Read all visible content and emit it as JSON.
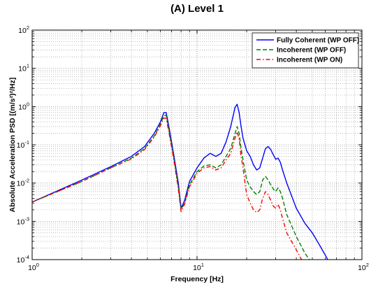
{
  "chart_data": {
    "type": "line",
    "title": "(A) Level 1",
    "xlabel": "Frequency [Hz]",
    "ylabel": "Absolute Acceleration PSD [(m/s²)²/Hz]",
    "xscale": "log",
    "yscale": "log",
    "xlim": [
      1,
      100
    ],
    "ylim": [
      0.0001,
      100
    ],
    "grid": "on (major and minor, dotted)",
    "legend_position": "top-right",
    "x_ticks": [
      {
        "base": "10",
        "exp": "0",
        "value": 1
      },
      {
        "base": "10",
        "exp": "1",
        "value": 10
      },
      {
        "base": "10",
        "exp": "2",
        "value": 100
      }
    ],
    "y_ticks": [
      {
        "base": "10",
        "exp": "2",
        "value": 100
      },
      {
        "base": "10",
        "exp": "1",
        "value": 10
      },
      {
        "base": "10",
        "exp": "0",
        "value": 1
      },
      {
        "base": "10",
        "exp": "-1",
        "value": 0.1
      },
      {
        "base": "10",
        "exp": "-2",
        "value": 0.01
      },
      {
        "base": "10",
        "exp": "-3",
        "value": 0.001
      },
      {
        "base": "10",
        "exp": "-4",
        "value": 0.0001
      }
    ],
    "series": [
      {
        "name": "Fully Coherent (WP OFF)",
        "color": "#0000ff",
        "dash": "solid",
        "x": [
          1,
          2,
          3,
          4,
          4.8,
          5.5,
          6,
          6.3,
          6.5,
          6.8,
          7.2,
          7.7,
          8,
          8.4,
          9,
          10,
          11,
          12,
          13,
          14,
          15,
          16,
          17,
          17.5,
          18,
          18.5,
          19,
          20,
          21,
          22,
          23,
          24,
          25,
          26,
          27,
          28,
          29,
          30,
          31,
          32,
          33,
          35,
          40,
          45,
          50,
          55,
          60,
          62
        ],
        "y": [
          0.0032,
          0.012,
          0.027,
          0.05,
          0.09,
          0.2,
          0.4,
          0.7,
          0.7,
          0.25,
          0.06,
          0.01,
          0.0022,
          0.0035,
          0.011,
          0.025,
          0.045,
          0.06,
          0.05,
          0.06,
          0.12,
          0.3,
          0.95,
          1.15,
          0.7,
          0.3,
          0.15,
          0.07,
          0.05,
          0.03,
          0.022,
          0.025,
          0.045,
          0.08,
          0.09,
          0.075,
          0.055,
          0.042,
          0.045,
          0.035,
          0.022,
          0.01,
          0.0022,
          0.0009,
          0.0005,
          0.00025,
          0.00013,
          0.0001
        ]
      },
      {
        "name": "Incoherent (WP OFF)",
        "color": "#008000",
        "dash": "dashed",
        "x": [
          1,
          2,
          3,
          4,
          4.8,
          5.5,
          6,
          6.3,
          6.5,
          6.8,
          7.2,
          7.7,
          8,
          8.4,
          9,
          10,
          11,
          12,
          13,
          14,
          15,
          16,
          17,
          17.5,
          18,
          18.5,
          19,
          20,
          21,
          22,
          23,
          24,
          25,
          26,
          27,
          28,
          29,
          30,
          31,
          32,
          33,
          35,
          40,
          45,
          48
        ],
        "y": [
          0.0032,
          0.011,
          0.025,
          0.045,
          0.08,
          0.17,
          0.35,
          0.58,
          0.6,
          0.2,
          0.05,
          0.008,
          0.002,
          0.003,
          0.009,
          0.02,
          0.028,
          0.03,
          0.025,
          0.03,
          0.05,
          0.08,
          0.2,
          0.3,
          0.2,
          0.08,
          0.04,
          0.012,
          0.008,
          0.006,
          0.005,
          0.006,
          0.012,
          0.015,
          0.012,
          0.009,
          0.007,
          0.006,
          0.0075,
          0.006,
          0.004,
          0.0015,
          0.0004,
          0.00015,
          0.0001
        ]
      },
      {
        "name": "Incoherent (WP ON)",
        "color": "#ff0000",
        "dash": "dash-dot",
        "x": [
          1,
          2,
          3,
          4,
          4.8,
          5.5,
          6,
          6.3,
          6.5,
          6.8,
          7.2,
          7.7,
          8,
          8.4,
          9,
          10,
          11,
          12,
          13,
          14,
          15,
          16,
          17,
          17.5,
          18,
          18.5,
          19,
          20,
          21,
          22,
          23,
          24,
          25,
          26,
          27,
          28,
          29,
          30,
          31,
          32,
          33,
          35,
          40,
          43
        ],
        "y": [
          0.0032,
          0.011,
          0.025,
          0.043,
          0.075,
          0.16,
          0.32,
          0.5,
          0.5,
          0.18,
          0.045,
          0.007,
          0.0018,
          0.0028,
          0.008,
          0.018,
          0.025,
          0.027,
          0.022,
          0.025,
          0.04,
          0.06,
          0.15,
          0.22,
          0.14,
          0.05,
          0.025,
          0.005,
          0.003,
          0.002,
          0.0017,
          0.002,
          0.004,
          0.006,
          0.005,
          0.0035,
          0.0025,
          0.0022,
          0.0028,
          0.002,
          0.0012,
          0.0005,
          0.00018,
          0.0001
        ]
      }
    ]
  }
}
